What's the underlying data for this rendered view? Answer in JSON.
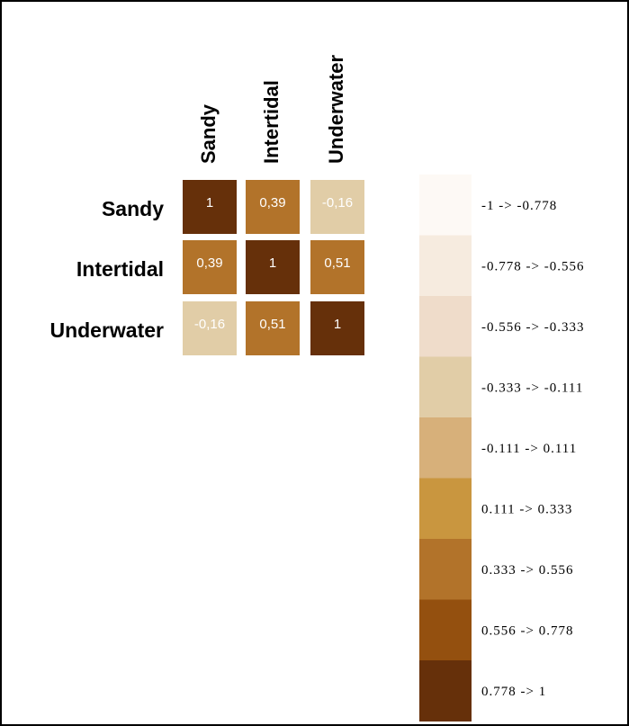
{
  "chart_data": {
    "type": "heatmap",
    "rows": [
      "Sandy",
      "Intertidal",
      "Underwater"
    ],
    "columns": [
      "Sandy",
      "Intertidal",
      "Underwater"
    ],
    "values": [
      [
        1,
        0.39,
        -0.16
      ],
      [
        0.39,
        1,
        0.51
      ],
      [
        -0.16,
        0.51,
        1
      ]
    ],
    "value_labels": [
      [
        "1",
        "0,39",
        "-0,16"
      ],
      [
        "0,39",
        "1",
        "0,51"
      ],
      [
        "-0,16",
        "0,51",
        "1"
      ]
    ],
    "legend": [
      {
        "label": "-1 -> -0.778",
        "color": "#fdf9f5"
      },
      {
        "label": "-0.778 -> -0.556",
        "color": "#f6ebdf"
      },
      {
        "label": "-0.556 -> -0.333",
        "color": "#efdcca"
      },
      {
        "label": "-0.333 -> -0.111",
        "color": "#e1cda7"
      },
      {
        "label": "-0.111 -> 0.111",
        "color": "#d7b07a"
      },
      {
        "label": "0.111 -> 0.333",
        "color": "#c9963f"
      },
      {
        "label": "0.333 -> 0.556",
        "color": "#b2732a"
      },
      {
        "label": "0.556 -> 0.778",
        "color": "#94500f"
      },
      {
        "label": "0.778 -> 1",
        "color": "#66300a"
      }
    ]
  }
}
